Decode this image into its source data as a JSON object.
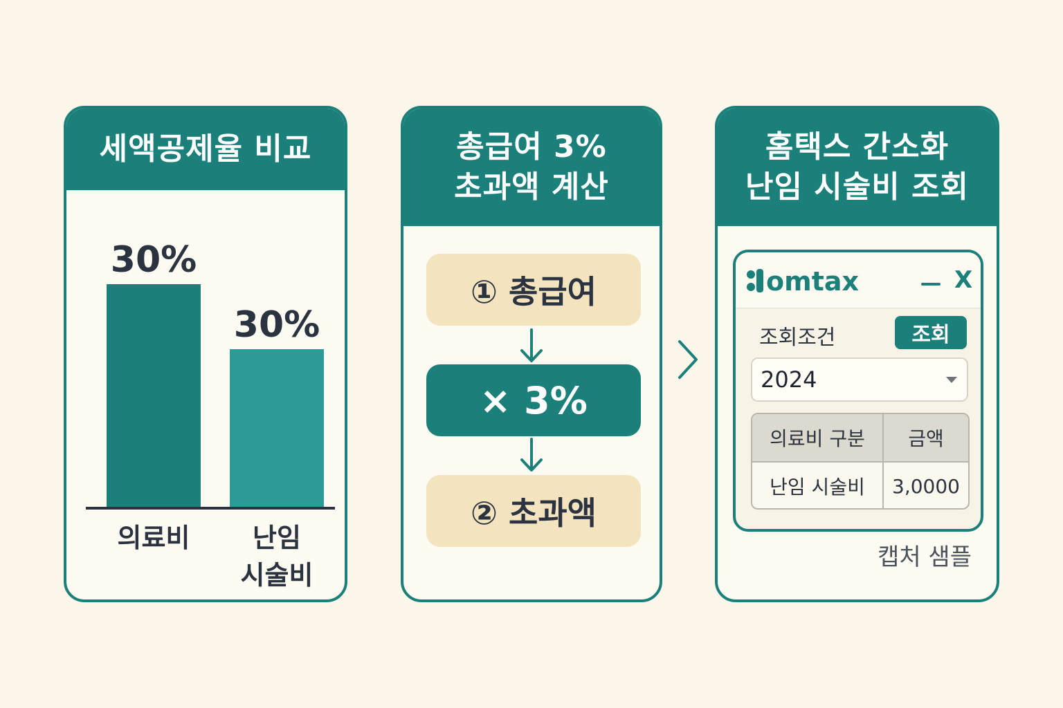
{
  "panel1": {
    "title": "세액공제율 비교",
    "chart_data": {
      "type": "bar",
      "categories": [
        "의료비",
        "난임\n시술비"
      ],
      "values": [
        30,
        30
      ],
      "value_labels": [
        "30%",
        "30%"
      ],
      "colors": [
        "#1b8079",
        "#2e9a95"
      ]
    }
  },
  "panel2": {
    "title_line1": "총급여 3%",
    "title_line2": "초과액 계산",
    "step1": "① 총급여",
    "multiplier": "× 3%",
    "step2": "② 초과액"
  },
  "panel3": {
    "title_line1": "홈택스 간소화",
    "title_line2": "난임 시술비 조회",
    "window": {
      "logo_text": "omtax",
      "close_label": "X",
      "condition_label": "조회조건",
      "search_button": "조회",
      "year_value": "2024",
      "table": {
        "headers": [
          "의료비 구분",
          "금액"
        ],
        "rows": [
          [
            "난임 시술비",
            "3,0000"
          ]
        ]
      }
    },
    "caption": "캡처 샘플"
  },
  "colors": {
    "teal": "#1b8079",
    "teal_light": "#2e9a95",
    "beige": "#f3e3bf",
    "background": "#fcf7ea"
  },
  "icons": {
    "flow_arrow": "arrow-down-icon",
    "panel_arrow": "chevron-right-icon",
    "window_min": "minimize-icon",
    "dropdown": "caret-down-icon"
  }
}
